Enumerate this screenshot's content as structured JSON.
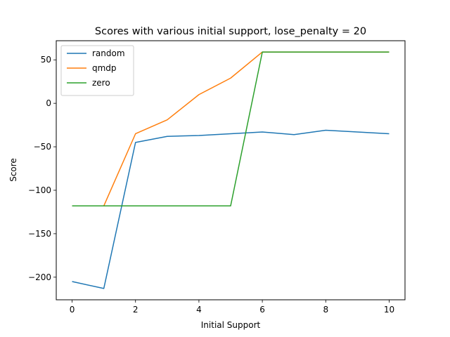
{
  "chart_data": {
    "type": "line",
    "title": "Scores with various initial support, lose_penalty = 20",
    "xlabel": "Initial Support",
    "ylabel": "Score",
    "x": [
      0,
      1,
      2,
      3,
      4,
      5,
      6,
      7,
      8,
      9,
      10
    ],
    "xlim": [
      -0.5,
      10.5
    ],
    "ylim": [
      -226,
      72
    ],
    "xticks": [
      0,
      2,
      4,
      6,
      8,
      10
    ],
    "yticks": [
      -200,
      -150,
      -100,
      -50,
      0,
      50
    ],
    "ytick_labels": [
      "−200",
      "−150",
      "−100",
      "−50",
      "0",
      "50"
    ],
    "grid": false,
    "legend_position": "top-left",
    "series": [
      {
        "name": "random",
        "color": "#1f77b4",
        "values": [
          -205,
          -213,
          -45,
          -38,
          -37,
          -35,
          -33,
          -36,
          -31,
          -33,
          -35
        ]
      },
      {
        "name": "qmdp",
        "color": "#ff7f0e",
        "values": [
          -118,
          -118,
          -35,
          -19,
          10,
          29,
          59,
          59,
          59,
          59,
          59
        ]
      },
      {
        "name": "zero",
        "color": "#2ca02c",
        "values": [
          -118,
          -118,
          -118,
          -118,
          -118,
          -118,
          59,
          59,
          59,
          59,
          59
        ]
      }
    ]
  }
}
